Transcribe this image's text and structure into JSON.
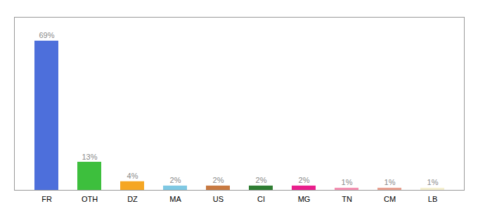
{
  "chart_data": {
    "type": "bar",
    "categories": [
      "FR",
      "OTH",
      "DZ",
      "MA",
      "US",
      "CI",
      "MG",
      "TN",
      "CM",
      "LB"
    ],
    "values": [
      69,
      13,
      4,
      2,
      2,
      2,
      2,
      1,
      1,
      1
    ],
    "value_labels": [
      "69%",
      "13%",
      "4%",
      "2%",
      "2%",
      "2%",
      "2%",
      "1%",
      "1%",
      "1%"
    ],
    "colors": [
      "#4d6fdb",
      "#3dbf3d",
      "#f5a623",
      "#7ec8e3",
      "#c87941",
      "#2e7d32",
      "#e91e8c",
      "#f48fb1",
      "#e8a090",
      "#f5f0d0"
    ],
    "ylim": [
      0,
      80
    ],
    "data_labels": true,
    "tick_labels": "x",
    "grid": false
  }
}
